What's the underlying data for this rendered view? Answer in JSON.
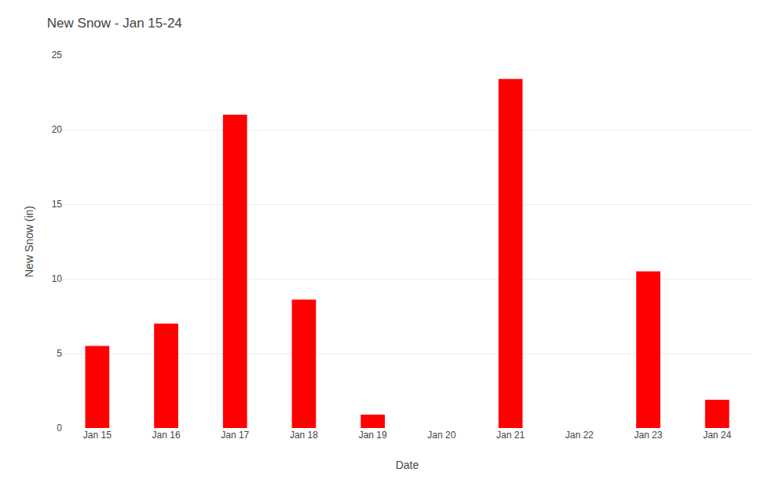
{
  "chart_data": {
    "type": "bar",
    "title": "New Snow - Jan 15-24",
    "xlabel": "Date",
    "ylabel": "New Snow (in)",
    "categories": [
      "Jan 15",
      "Jan 16",
      "Jan 17",
      "Jan 18",
      "Jan 19",
      "Jan 20",
      "Jan 21",
      "Jan 22",
      "Jan 23",
      "Jan 24"
    ],
    "values": [
      5.5,
      7.0,
      21.0,
      8.6,
      0.9,
      0.0,
      23.4,
      0.0,
      10.5,
      1.9
    ],
    "color": "#ff0000",
    "ylim": [
      0,
      25
    ],
    "yticks": [
      0,
      5,
      10,
      15,
      20,
      25
    ],
    "grid": true
  }
}
